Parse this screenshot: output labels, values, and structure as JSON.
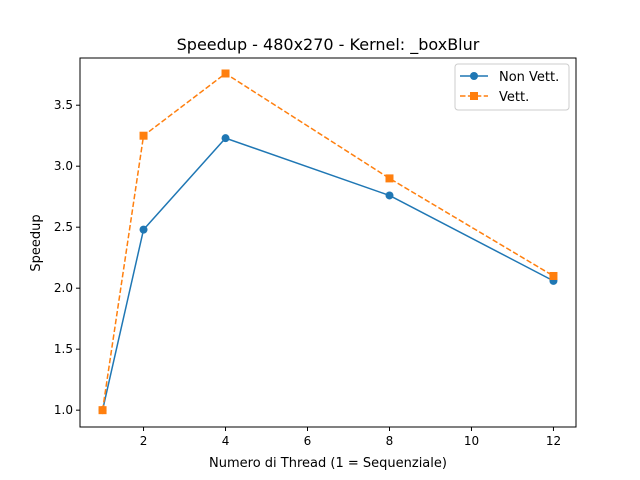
{
  "chart_data": {
    "type": "line",
    "title": "Speedup - 480x270 - Kernel: _boxBlur",
    "xlabel": "Numero di Thread (1 = Sequenziale)",
    "ylabel": "Speedup",
    "x": [
      1,
      2,
      4,
      8,
      12
    ],
    "xticks": [
      "2",
      "4",
      "6",
      "8",
      "10",
      "12"
    ],
    "yticks": [
      "1.0",
      "1.5",
      "2.0",
      "2.5",
      "3.0",
      "3.5"
    ],
    "xlim": [
      0.45,
      12.55
    ],
    "ylim": [
      0.862,
      3.887
    ],
    "grid": false,
    "legend_position": "top-right",
    "series": [
      {
        "name": "Non Vett.",
        "values": [
          1.0,
          2.48,
          3.23,
          2.76,
          2.06
        ],
        "color": "#1f77b4",
        "marker": "circle",
        "linestyle": "solid"
      },
      {
        "name": "Vett.",
        "values": [
          1.0,
          3.25,
          3.76,
          2.9,
          2.1
        ],
        "color": "#ff7f0e",
        "marker": "square",
        "linestyle": "dashed"
      }
    ]
  }
}
